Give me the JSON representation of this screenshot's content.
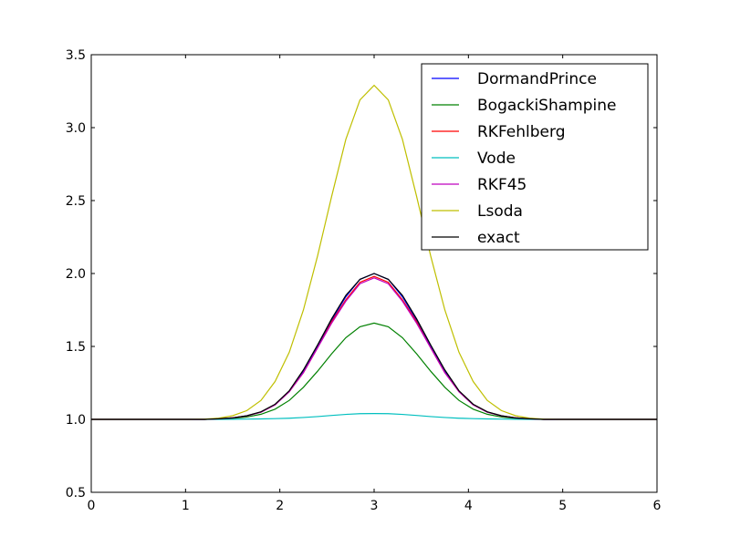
{
  "chart_data": {
    "type": "line",
    "title": "",
    "xlabel": "",
    "ylabel": "",
    "xlim": [
      0,
      6
    ],
    "ylim": [
      0.5,
      3.5
    ],
    "grid": false,
    "legend_position": "top-right",
    "xticks": [
      0,
      1,
      2,
      3,
      4,
      5,
      6
    ],
    "xtick_labels": [
      "0",
      "1",
      "2",
      "3",
      "4",
      "5",
      "6"
    ],
    "yticks": [
      0.5,
      1.0,
      1.5,
      2.0,
      2.5,
      3.0,
      3.5
    ],
    "ytick_labels": [
      "0.5",
      "1.0",
      "1.5",
      "2.0",
      "2.5",
      "3.0",
      "3.5"
    ],
    "x": [
      0.0,
      0.15,
      0.3,
      0.45,
      0.6,
      0.75,
      0.9,
      1.05,
      1.2,
      1.35,
      1.5,
      1.65,
      1.8,
      1.95,
      2.1,
      2.25,
      2.4,
      2.55,
      2.7,
      2.85,
      3.0,
      3.15,
      3.3,
      3.45,
      3.6,
      3.75,
      3.9,
      4.05,
      4.2,
      4.35,
      4.5,
      4.65,
      4.8,
      4.95,
      5.1,
      5.25,
      5.4,
      5.55,
      5.7,
      5.85,
      6.0
    ],
    "series": [
      {
        "name": "DormandPrince",
        "color": "#0000ff",
        "values": [
          1.0,
          1.0,
          1.0,
          1.0,
          1.0,
          1.0,
          1.0,
          1.0,
          1.0,
          1.004,
          1.01,
          1.024,
          1.05,
          1.1,
          1.19,
          1.33,
          1.5,
          1.68,
          1.84,
          1.96,
          2.0,
          1.96,
          1.84,
          1.68,
          1.5,
          1.33,
          1.19,
          1.1,
          1.05,
          1.024,
          1.01,
          1.004,
          1.0,
          1.0,
          1.0,
          1.0,
          1.0,
          1.0,
          1.0,
          1.0,
          1.0
        ]
      },
      {
        "name": "BogackiShampine",
        "color": "#008000",
        "values": [
          1.0,
          1.0,
          1.0,
          1.0,
          1.0,
          1.0,
          1.0,
          1.0,
          1.0,
          1.003,
          1.007,
          1.016,
          1.035,
          1.07,
          1.13,
          1.22,
          1.33,
          1.45,
          1.56,
          1.635,
          1.66,
          1.635,
          1.56,
          1.45,
          1.33,
          1.22,
          1.13,
          1.07,
          1.035,
          1.016,
          1.007,
          1.003,
          1.0,
          1.0,
          1.0,
          1.0,
          1.0,
          1.0,
          1.0,
          1.0,
          1.0
        ]
      },
      {
        "name": "RKFehlberg",
        "color": "#ff0000",
        "values": [
          1.0,
          1.0,
          1.0,
          1.0,
          1.0,
          1.0,
          1.0,
          1.0,
          1.0,
          1.004,
          1.01,
          1.024,
          1.05,
          1.1,
          1.19,
          1.32,
          1.49,
          1.67,
          1.82,
          1.94,
          1.98,
          1.94,
          1.82,
          1.67,
          1.49,
          1.32,
          1.19,
          1.1,
          1.05,
          1.024,
          1.01,
          1.004,
          1.0,
          1.0,
          1.0,
          1.0,
          1.0,
          1.0,
          1.0,
          1.0,
          1.0
        ]
      },
      {
        "name": "Vode",
        "color": "#00bfbf",
        "values": [
          1.0,
          1.0,
          1.0,
          1.0,
          1.0,
          1.0,
          1.0,
          1.0,
          1.0,
          1.0,
          1.001,
          1.002,
          1.003,
          1.005,
          1.008,
          1.013,
          1.019,
          1.027,
          1.034,
          1.039,
          1.04,
          1.039,
          1.034,
          1.027,
          1.019,
          1.013,
          1.008,
          1.005,
          1.003,
          1.002,
          1.001,
          1.0,
          1.0,
          1.0,
          1.0,
          1.0,
          1.0,
          1.0,
          1.0,
          1.0,
          1.0
        ]
      },
      {
        "name": "RKF45",
        "color": "#bf00bf",
        "values": [
          1.0,
          1.0,
          1.0,
          1.0,
          1.0,
          1.0,
          1.0,
          1.0,
          1.0,
          1.004,
          1.01,
          1.024,
          1.05,
          1.1,
          1.19,
          1.32,
          1.49,
          1.66,
          1.81,
          1.93,
          1.97,
          1.93,
          1.81,
          1.66,
          1.49,
          1.32,
          1.19,
          1.1,
          1.05,
          1.024,
          1.01,
          1.004,
          1.0,
          1.0,
          1.0,
          1.0,
          1.0,
          1.0,
          1.0,
          1.0,
          1.0
        ]
      },
      {
        "name": "Lsoda",
        "color": "#bfbf00",
        "values": [
          1.0,
          1.0,
          1.0,
          1.0,
          1.0,
          1.0,
          1.0,
          1.0,
          1.002,
          1.008,
          1.025,
          1.06,
          1.13,
          1.26,
          1.46,
          1.75,
          2.12,
          2.53,
          2.92,
          3.19,
          3.29,
          3.19,
          2.92,
          2.53,
          2.12,
          1.75,
          1.46,
          1.26,
          1.13,
          1.06,
          1.025,
          1.008,
          1.002,
          1.0,
          1.0,
          1.0,
          1.0,
          1.0,
          1.0,
          1.0,
          1.0
        ]
      },
      {
        "name": "exact",
        "color": "#000000",
        "values": [
          1.0,
          1.0,
          1.0,
          1.0,
          1.0,
          1.0,
          1.0,
          1.0,
          1.0,
          1.004,
          1.01,
          1.025,
          1.052,
          1.104,
          1.196,
          1.339,
          1.51,
          1.69,
          1.85,
          1.96,
          2.0,
          1.96,
          1.85,
          1.69,
          1.51,
          1.339,
          1.196,
          1.104,
          1.052,
          1.025,
          1.01,
          1.004,
          1.0,
          1.0,
          1.0,
          1.0,
          1.0,
          1.0,
          1.0,
          1.0,
          1.0
        ]
      }
    ]
  }
}
